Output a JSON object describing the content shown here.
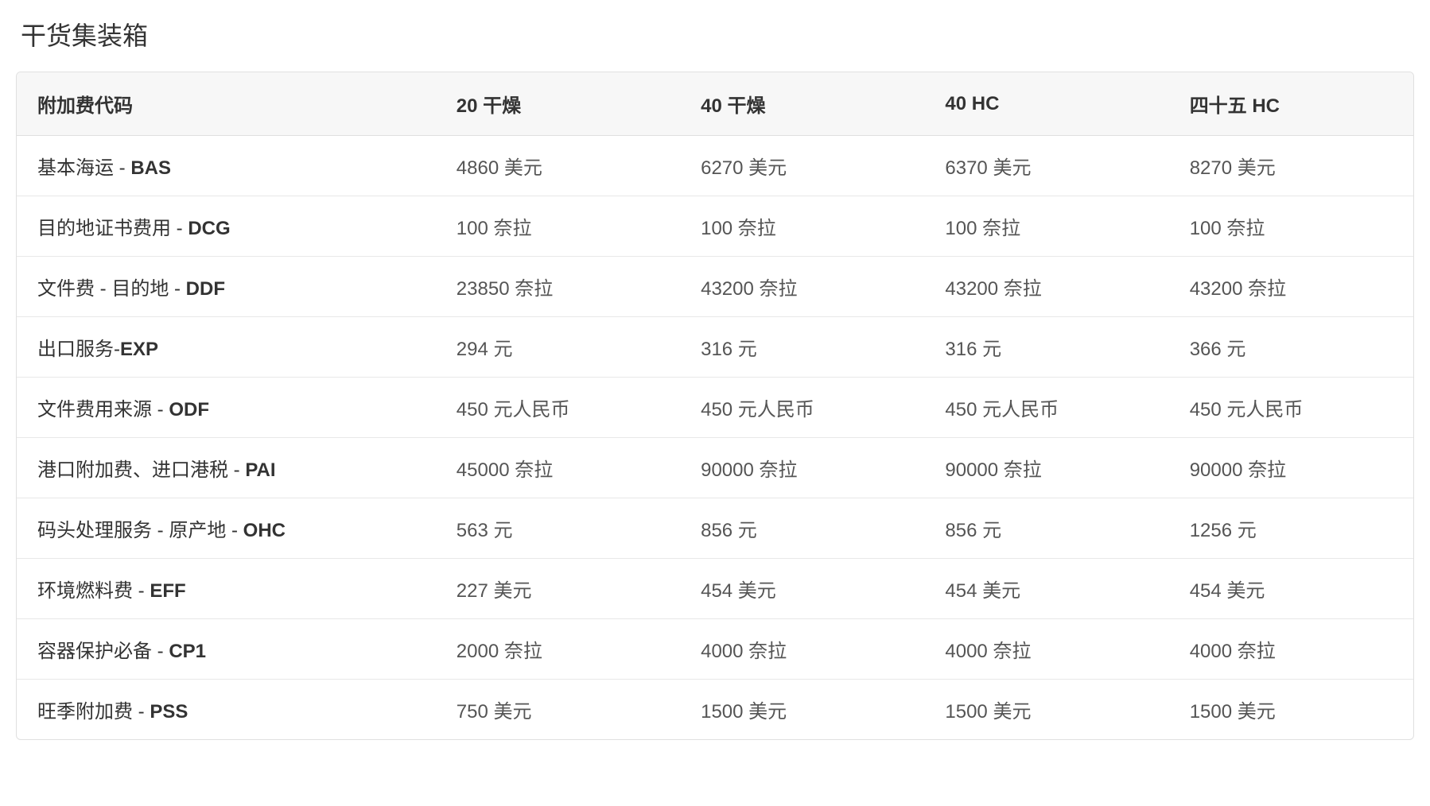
{
  "title": "干货集装箱",
  "table": {
    "columns": [
      {
        "label": "附加费代码"
      },
      {
        "label": "20 干燥"
      },
      {
        "label": "40 干燥"
      },
      {
        "label": "40 HC"
      },
      {
        "label": "四十五 HC"
      }
    ],
    "rows": [
      {
        "label_text": "基本海运 - ",
        "label_code": "BAS",
        "c1": "4860 美元",
        "c2": "6270 美元",
        "c3": "6370 美元",
        "c4": "8270 美元"
      },
      {
        "label_text": "目的地证书费用 - ",
        "label_code": "DCG",
        "c1": "100 奈拉",
        "c2": "100 奈拉",
        "c3": "100 奈拉",
        "c4": "100 奈拉"
      },
      {
        "label_text": "文件费 - 目的地 - ",
        "label_code": "DDF",
        "c1": "23850 奈拉",
        "c2": "43200 奈拉",
        "c3": "43200 奈拉",
        "c4": "43200 奈拉"
      },
      {
        "label_text": "出口服务-",
        "label_code": "EXP",
        "c1": "294 元",
        "c2": "316 元",
        "c3": "316 元",
        "c4": "366 元"
      },
      {
        "label_text": "文件费用来源 - ",
        "label_code": "ODF",
        "c1": "450 元人民币",
        "c2": "450 元人民币",
        "c3": "450 元人民币",
        "c4": "450 元人民币"
      },
      {
        "label_text": "港口附加费、进口港税 - ",
        "label_code": "PAI",
        "c1": "45000 奈拉",
        "c2": "90000 奈拉",
        "c3": "90000 奈拉",
        "c4": "90000 奈拉"
      },
      {
        "label_text": "码头处理服务 - 原产地 - ",
        "label_code": "OHC",
        "c1": "563 元",
        "c2": "856 元",
        "c3": "856 元",
        "c4": "1256 元"
      },
      {
        "label_text": "环境燃料费 - ",
        "label_code": "EFF",
        "c1": "227 美元",
        "c2": "454 美元",
        "c3": "454 美元",
        "c4": "454 美元"
      },
      {
        "label_text": "容器保护必备 - ",
        "label_code": "CP1",
        "c1": "2000 奈拉",
        "c2": "4000 奈拉",
        "c3": "4000 奈拉",
        "c4": "4000 奈拉"
      },
      {
        "label_text": "旺季附加费 - ",
        "label_code": "PSS",
        "c1": "750 美元",
        "c2": "1500 美元",
        "c3": "1500 美元",
        "c4": "1500 美元"
      }
    ]
  },
  "style": {
    "background_color": "#ffffff",
    "header_bg": "#f7f7f7",
    "border_color": "#e0e0e0",
    "row_border_color": "#e8e8e8",
    "title_fontsize": 32,
    "header_fontsize": 24,
    "cell_fontsize": 24,
    "text_color": "#333333",
    "cell_text_color": "#555555",
    "header_font_weight": "700",
    "code_font_weight": "700"
  }
}
